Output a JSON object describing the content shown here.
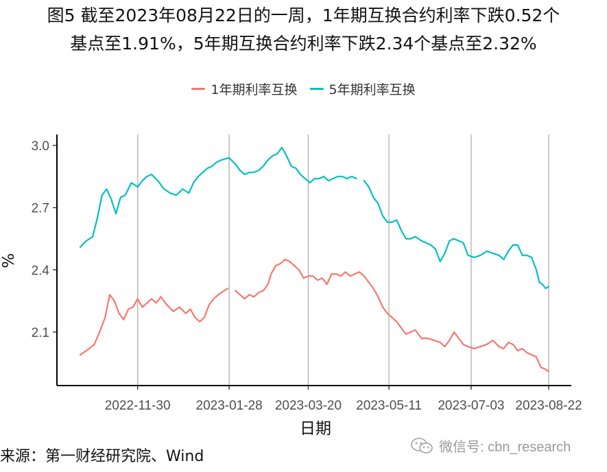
{
  "title_line1": "图5  截至2023年08月22日的一周，1年期互换合约利率下跌0.52个",
  "title_line2": "基点至1.91%，5年期互换合约利率下跌2.34个基点至2.32%",
  "source": "来源：第一财经研究院、Wind",
  "watermark": "微信号: cbn_research",
  "watermark_icon": "wechat-icon",
  "chart_data": {
    "type": "line",
    "xlabel": "日期",
    "ylabel": "%",
    "ylim": [
      1.88,
      3.05
    ],
    "xlim": [
      "2022-10-24",
      "2023-08-22"
    ],
    "yticks": [
      2.1,
      2.4,
      2.7,
      3.0
    ],
    "ytick_labels": [
      "2.1",
      "2.4",
      "2.7",
      "3.0"
    ],
    "xticks": [
      "2022-11-30",
      "2023-01-28",
      "2023-03-20",
      "2023-05-11",
      "2023-07-03",
      "2023-08-22"
    ],
    "grid": "vertical major gridlines",
    "legend_position": "top",
    "series": [
      {
        "name": "1年期利率互换",
        "color": "#F8766D",
        "segments": [
          [
            [
              "2022-10-24",
              1.99
            ],
            [
              "2022-10-28",
              2.01
            ],
            [
              "2022-11-02",
              2.04
            ],
            [
              "2022-11-06",
              2.11
            ],
            [
              "2022-11-09",
              2.17
            ],
            [
              "2022-11-12",
              2.28
            ],
            [
              "2022-11-15",
              2.25
            ],
            [
              "2022-11-18",
              2.19
            ],
            [
              "2022-11-21",
              2.16
            ],
            [
              "2022-11-24",
              2.21
            ],
            [
              "2022-11-27",
              2.22
            ],
            [
              "2022-11-30",
              2.26
            ],
            [
              "2022-12-03",
              2.22
            ],
            [
              "2022-12-06",
              2.24
            ],
            [
              "2022-12-09",
              2.26
            ],
            [
              "2022-12-12",
              2.24
            ],
            [
              "2022-12-15",
              2.27
            ],
            [
              "2022-12-19",
              2.23
            ],
            [
              "2022-12-23",
              2.2
            ],
            [
              "2022-12-27",
              2.22
            ],
            [
              "2022-12-31",
              2.19
            ],
            [
              "2023-01-03",
              2.21
            ],
            [
              "2023-01-06",
              2.17
            ],
            [
              "2023-01-09",
              2.15
            ],
            [
              "2023-01-12",
              2.17
            ],
            [
              "2023-01-15",
              2.23
            ],
            [
              "2023-01-18",
              2.26
            ],
            [
              "2023-01-21",
              2.28
            ],
            [
              "2023-01-25",
              2.3
            ],
            [
              "2023-01-27",
              2.31
            ]
          ],
          [
            [
              "2023-02-01",
              2.3
            ],
            [
              "2023-02-04",
              2.28
            ],
            [
              "2023-02-07",
              2.26
            ],
            [
              "2023-02-10",
              2.28
            ],
            [
              "2023-02-13",
              2.27
            ],
            [
              "2023-02-16",
              2.29
            ],
            [
              "2023-02-19",
              2.3
            ],
            [
              "2023-02-22",
              2.33
            ],
            [
              "2023-02-24",
              2.38
            ],
            [
              "2023-02-27",
              2.42
            ],
            [
              "2023-03-02",
              2.43
            ],
            [
              "2023-03-05",
              2.45
            ],
            [
              "2023-03-08",
              2.44
            ],
            [
              "2023-03-11",
              2.42
            ],
            [
              "2023-03-14",
              2.4
            ],
            [
              "2023-03-17",
              2.36
            ],
            [
              "2023-03-20",
              2.37
            ],
            [
              "2023-03-23",
              2.37
            ],
            [
              "2023-03-26",
              2.35
            ],
            [
              "2023-03-29",
              2.36
            ],
            [
              "2023-04-01",
              2.33
            ],
            [
              "2023-04-04",
              2.38
            ],
            [
              "2023-04-07",
              2.38
            ],
            [
              "2023-04-10",
              2.37
            ],
            [
              "2023-04-13",
              2.39
            ],
            [
              "2023-04-16",
              2.37
            ],
            [
              "2023-04-19",
              2.38
            ],
            [
              "2023-04-22",
              2.39
            ],
            [
              "2023-04-25",
              2.37
            ],
            [
              "2023-04-28",
              2.34
            ],
            [
              "2023-05-01",
              2.31
            ],
            [
              "2023-05-04",
              2.27
            ],
            [
              "2023-05-07",
              2.22
            ],
            [
              "2023-05-10",
              2.19
            ],
            [
              "2023-05-13",
              2.17
            ],
            [
              "2023-05-16",
              2.15
            ],
            [
              "2023-05-19",
              2.12
            ],
            [
              "2023-05-22",
              2.09
            ],
            [
              "2023-05-25",
              2.1
            ],
            [
              "2023-05-28",
              2.11
            ],
            [
              "2023-06-01",
              2.07
            ],
            [
              "2023-06-05",
              2.07
            ],
            [
              "2023-06-09",
              2.06
            ],
            [
              "2023-06-13",
              2.05
            ],
            [
              "2023-06-16",
              2.03
            ],
            [
              "2023-06-19",
              2.06
            ],
            [
              "2023-06-22",
              2.1
            ],
            [
              "2023-06-25",
              2.07
            ],
            [
              "2023-06-28",
              2.04
            ],
            [
              "2023-07-01",
              2.03
            ],
            [
              "2023-07-05",
              2.02
            ],
            [
              "2023-07-09",
              2.03
            ],
            [
              "2023-07-13",
              2.04
            ],
            [
              "2023-07-17",
              2.06
            ],
            [
              "2023-07-21",
              2.03
            ],
            [
              "2023-07-24",
              2.02
            ],
            [
              "2023-07-27",
              2.05
            ],
            [
              "2023-07-30",
              2.04
            ],
            [
              "2023-08-02",
              2.01
            ],
            [
              "2023-08-05",
              2.02
            ],
            [
              "2023-08-08",
              2.0
            ],
            [
              "2023-08-11",
              1.99
            ],
            [
              "2023-08-14",
              1.98
            ],
            [
              "2023-08-17",
              1.93
            ],
            [
              "2023-08-20",
              1.92
            ],
            [
              "2023-08-22",
              1.91
            ]
          ]
        ]
      },
      {
        "name": "5年期利率互换",
        "color": "#00BFC4",
        "segments": [
          [
            [
              "2022-10-24",
              2.51
            ],
            [
              "2022-10-28",
              2.54
            ],
            [
              "2022-11-01",
              2.56
            ],
            [
              "2022-11-04",
              2.65
            ],
            [
              "2022-11-07",
              2.76
            ],
            [
              "2022-11-10",
              2.79
            ],
            [
              "2022-11-13",
              2.74
            ],
            [
              "2022-11-16",
              2.67
            ],
            [
              "2022-11-19",
              2.75
            ],
            [
              "2022-11-22",
              2.76
            ],
            [
              "2022-11-26",
              2.82
            ],
            [
              "2022-11-30",
              2.8
            ],
            [
              "2022-12-03",
              2.83
            ],
            [
              "2022-12-06",
              2.85
            ],
            [
              "2022-12-09",
              2.86
            ],
            [
              "2022-12-13",
              2.83
            ],
            [
              "2022-12-17",
              2.79
            ],
            [
              "2022-12-21",
              2.77
            ],
            [
              "2022-12-25",
              2.76
            ],
            [
              "2022-12-29",
              2.79
            ],
            [
              "2023-01-02",
              2.77
            ],
            [
              "2023-01-05",
              2.82
            ],
            [
              "2023-01-08",
              2.85
            ],
            [
              "2023-01-11",
              2.87
            ],
            [
              "2023-01-14",
              2.89
            ],
            [
              "2023-01-17",
              2.9
            ],
            [
              "2023-01-20",
              2.92
            ],
            [
              "2023-01-23",
              2.93
            ],
            [
              "2023-01-28",
              2.94
            ],
            [
              "2023-02-01",
              2.91
            ],
            [
              "2023-02-04",
              2.88
            ],
            [
              "2023-02-07",
              2.86
            ],
            [
              "2023-02-10",
              2.87
            ],
            [
              "2023-02-13",
              2.87
            ],
            [
              "2023-02-16",
              2.88
            ],
            [
              "2023-02-19",
              2.9
            ],
            [
              "2023-02-22",
              2.93
            ],
            [
              "2023-02-25",
              2.95
            ],
            [
              "2023-02-28",
              2.96
            ],
            [
              "2023-03-03",
              2.99
            ],
            [
              "2023-03-06",
              2.95
            ],
            [
              "2023-03-09",
              2.9
            ],
            [
              "2023-03-12",
              2.89
            ],
            [
              "2023-03-15",
              2.86
            ],
            [
              "2023-03-18",
              2.84
            ],
            [
              "2023-03-21",
              2.82
            ],
            [
              "2023-03-24",
              2.84
            ],
            [
              "2023-03-27",
              2.84
            ],
            [
              "2023-03-30",
              2.85
            ],
            [
              "2023-04-02",
              2.83
            ],
            [
              "2023-04-05",
              2.84
            ],
            [
              "2023-04-08",
              2.85
            ],
            [
              "2023-04-11",
              2.85
            ],
            [
              "2023-04-14",
              2.84
            ],
            [
              "2023-04-17",
              2.85
            ],
            [
              "2023-04-20",
              2.84
            ]
          ],
          [
            [
              "2023-04-25",
              2.83
            ],
            [
              "2023-04-28",
              2.8
            ],
            [
              "2023-05-01",
              2.75
            ],
            [
              "2023-05-04",
              2.72
            ],
            [
              "2023-05-07",
              2.66
            ],
            [
              "2023-05-10",
              2.63
            ],
            [
              "2023-05-13",
              2.63
            ],
            [
              "2023-05-16",
              2.64
            ],
            [
              "2023-05-19",
              2.59
            ],
            [
              "2023-05-22",
              2.55
            ],
            [
              "2023-05-25",
              2.55
            ],
            [
              "2023-05-28",
              2.56
            ],
            [
              "2023-06-01",
              2.54
            ],
            [
              "2023-06-04",
              2.53
            ],
            [
              "2023-06-07",
              2.52
            ],
            [
              "2023-06-10",
              2.5
            ],
            [
              "2023-06-13",
              2.44
            ],
            [
              "2023-06-16",
              2.48
            ],
            [
              "2023-06-19",
              2.54
            ],
            [
              "2023-06-22",
              2.55
            ],
            [
              "2023-06-25",
              2.54
            ],
            [
              "2023-06-28",
              2.53
            ],
            [
              "2023-07-01",
              2.47
            ],
            [
              "2023-07-05",
              2.46
            ],
            [
              "2023-07-09",
              2.47
            ],
            [
              "2023-07-13",
              2.49
            ],
            [
              "2023-07-17",
              2.48
            ],
            [
              "2023-07-21",
              2.47
            ],
            [
              "2023-07-24",
              2.45
            ],
            [
              "2023-07-27",
              2.49
            ],
            [
              "2023-07-30",
              2.52
            ],
            [
              "2023-08-02",
              2.52
            ],
            [
              "2023-08-05",
              2.47
            ],
            [
              "2023-08-08",
              2.47
            ],
            [
              "2023-08-11",
              2.46
            ],
            [
              "2023-08-14",
              2.4
            ],
            [
              "2023-08-16",
              2.34
            ],
            [
              "2023-08-18",
              2.33
            ],
            [
              "2023-08-20",
              2.31
            ],
            [
              "2023-08-22",
              2.32
            ]
          ]
        ]
      }
    ]
  }
}
